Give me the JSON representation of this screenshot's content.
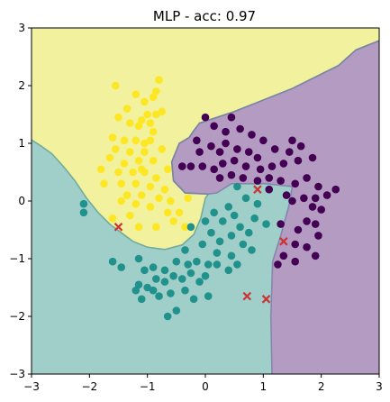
{
  "chart_data": {
    "type": "scatter",
    "title": "MLP - acc: 0.97",
    "xlabel": "",
    "ylabel": "",
    "xlim": [
      -3,
      3
    ],
    "ylim": [
      -3,
      3
    ],
    "xticks": [
      "−3",
      "−2",
      "−1",
      "0",
      "1",
      "2",
      "3"
    ],
    "yticks": [
      "−3",
      "−2",
      "−1",
      "0",
      "1",
      "2",
      "3"
    ],
    "grid": false,
    "legend": "none",
    "colors": {
      "class_0": "#440154",
      "class_1": "#21918c",
      "class_2": "#fde725",
      "region_0": "#b39bc2",
      "region_1": "#a0cfca",
      "region_2": "#f2f19d",
      "boundary": "#5f9f95",
      "misclassified": "#cc3333"
    },
    "decision_regions": {
      "class_2_boundary": [
        [
          -3.0,
          1.06
        ],
        [
          -2.83,
          0.95
        ],
        [
          -2.65,
          0.82
        ],
        [
          -2.45,
          0.6
        ],
        [
          -2.25,
          0.35
        ],
        [
          -2.05,
          0.05
        ],
        [
          -1.85,
          -0.2
        ],
        [
          -1.65,
          -0.4
        ],
        [
          -1.45,
          -0.55
        ],
        [
          -1.25,
          -0.7
        ],
        [
          -1.0,
          -0.8
        ],
        [
          -0.7,
          -0.84
        ],
        [
          -0.4,
          -0.76
        ],
        [
          -0.2,
          -0.58
        ],
        [
          -0.08,
          -0.3
        ],
        [
          0.0,
          0.05
        ],
        [
          0.05,
          0.12
        ],
        [
          -0.35,
          0.14
        ],
        [
          -0.55,
          0.35
        ],
        [
          -0.58,
          0.68
        ],
        [
          -0.45,
          1.0
        ],
        [
          -0.28,
          1.1
        ],
        [
          -0.2,
          1.22
        ],
        [
          -0.1,
          1.35
        ],
        [
          0.5,
          1.55
        ],
        [
          1.5,
          1.95
        ],
        [
          2.3,
          2.35
        ],
        [
          2.6,
          2.62
        ],
        [
          3.0,
          2.78
        ]
      ],
      "class_0_boundary": [
        [
          1.15,
          -3.0
        ],
        [
          1.13,
          -2.0
        ],
        [
          1.16,
          -1.05
        ],
        [
          1.3,
          -0.6
        ],
        [
          1.45,
          -0.05
        ],
        [
          1.5,
          0.25
        ],
        [
          1.05,
          0.3
        ],
        [
          0.45,
          0.3
        ],
        [
          0.2,
          0.14
        ],
        [
          0.05,
          0.12
        ],
        [
          -0.35,
          0.14
        ],
        [
          -0.55,
          0.35
        ],
        [
          -0.58,
          0.68
        ],
        [
          -0.45,
          1.0
        ],
        [
          -0.28,
          1.1
        ],
        [
          -0.2,
          1.22
        ],
        [
          -0.1,
          1.35
        ],
        [
          0.5,
          1.55
        ],
        [
          1.5,
          1.95
        ],
        [
          2.3,
          2.35
        ],
        [
          2.6,
          2.62
        ],
        [
          3.0,
          2.78
        ]
      ]
    },
    "series": [
      {
        "class": 2,
        "points": [
          [
            -1.55,
            2.0
          ],
          [
            -1.2,
            1.85
          ],
          [
            -0.8,
            2.1
          ],
          [
            -0.85,
            1.9
          ],
          [
            -0.9,
            1.8
          ],
          [
            -1.05,
            1.72
          ],
          [
            -0.75,
            1.55
          ],
          [
            -1.0,
            1.5
          ],
          [
            -1.5,
            1.45
          ],
          [
            -1.3,
            1.35
          ],
          [
            -1.1,
            1.4
          ],
          [
            -0.95,
            1.35
          ],
          [
            -0.9,
            1.2
          ],
          [
            -1.15,
            1.3
          ],
          [
            -1.6,
            1.1
          ],
          [
            -1.4,
            1.05
          ],
          [
            -1.2,
            1.05
          ],
          [
            -1.05,
            1.0
          ],
          [
            -0.95,
            1.05
          ],
          [
            -1.55,
            0.9
          ],
          [
            -1.3,
            0.85
          ],
          [
            -1.05,
            0.85
          ],
          [
            -0.75,
            0.9
          ],
          [
            -1.65,
            0.75
          ],
          [
            -1.4,
            0.65
          ],
          [
            -1.15,
            0.7
          ],
          [
            -0.9,
            0.7
          ],
          [
            -0.65,
            0.55
          ],
          [
            -1.8,
            0.55
          ],
          [
            -1.5,
            0.5
          ],
          [
            -1.25,
            0.5
          ],
          [
            -1.05,
            0.5
          ],
          [
            -0.85,
            0.4
          ],
          [
            -1.75,
            0.3
          ],
          [
            -1.45,
            0.3
          ],
          [
            -1.2,
            0.3
          ],
          [
            -0.95,
            0.25
          ],
          [
            -0.7,
            0.2
          ],
          [
            -1.35,
            0.1
          ],
          [
            -1.1,
            0.1
          ],
          [
            -0.8,
            0.05
          ],
          [
            -0.6,
            0.0
          ],
          [
            -1.2,
            -0.05
          ],
          [
            -0.95,
            -0.1
          ],
          [
            -0.65,
            -0.2
          ],
          [
            -1.3,
            -0.25
          ],
          [
            -0.45,
            -0.2
          ],
          [
            -0.55,
            -0.35
          ],
          [
            -0.35,
            -0.45
          ],
          [
            -0.85,
            -0.45
          ],
          [
            -1.15,
            -0.45
          ],
          [
            -0.3,
            0.05
          ],
          [
            -1.6,
            -0.3
          ],
          [
            -1.45,
            0.0
          ],
          [
            -0.85,
            1.5
          ],
          [
            -1.35,
            1.6
          ],
          [
            -1.1,
            0.55
          ]
        ]
      },
      {
        "class": 0,
        "points": [
          [
            0.0,
            1.45
          ],
          [
            0.15,
            1.3
          ],
          [
            0.35,
            1.2
          ],
          [
            0.6,
            1.25
          ],
          [
            0.8,
            1.15
          ],
          [
            1.0,
            1.05
          ],
          [
            1.5,
            1.05
          ],
          [
            -0.15,
            1.05
          ],
          [
            0.1,
            0.95
          ],
          [
            0.35,
            1.0
          ],
          [
            0.55,
            0.9
          ],
          [
            0.75,
            0.85
          ],
          [
            1.2,
            0.9
          ],
          [
            1.45,
            0.85
          ],
          [
            1.65,
            0.95
          ],
          [
            1.85,
            0.75
          ],
          [
            1.6,
            0.7
          ],
          [
            1.35,
            0.65
          ],
          [
            1.15,
            0.6
          ],
          [
            0.95,
            0.55
          ],
          [
            0.7,
            0.6
          ],
          [
            0.5,
            0.7
          ],
          [
            0.3,
            0.65
          ],
          [
            0.15,
            0.55
          ],
          [
            -0.05,
            0.6
          ],
          [
            -0.25,
            0.6
          ],
          [
            -0.4,
            0.6
          ],
          [
            0.25,
            0.4
          ],
          [
            0.45,
            0.45
          ],
          [
            0.65,
            0.4
          ],
          [
            0.9,
            0.35
          ],
          [
            1.1,
            0.4
          ],
          [
            1.3,
            0.35
          ],
          [
            1.55,
            0.3
          ],
          [
            1.75,
            0.4
          ],
          [
            1.95,
            0.25
          ],
          [
            2.1,
            0.1
          ],
          [
            2.25,
            0.2
          ],
          [
            1.9,
            0.05
          ],
          [
            1.7,
            0.05
          ],
          [
            1.5,
            0.0
          ],
          [
            1.4,
            0.1
          ],
          [
            1.85,
            -0.1
          ],
          [
            2.0,
            -0.15
          ],
          [
            1.75,
            -0.35
          ],
          [
            1.6,
            -0.5
          ],
          [
            1.9,
            -0.4
          ],
          [
            1.55,
            -0.75
          ],
          [
            1.75,
            -0.8
          ],
          [
            1.95,
            -0.6
          ],
          [
            1.55,
            -1.05
          ],
          [
            1.9,
            -0.95
          ],
          [
            1.35,
            -0.95
          ],
          [
            1.25,
            -1.1
          ],
          [
            1.3,
            -0.4
          ],
          [
            1.1,
            0.2
          ],
          [
            0.9,
            0.75
          ],
          [
            0.45,
            1.45
          ],
          [
            0.25,
            0.85
          ],
          [
            -0.1,
            0.85
          ]
        ]
      },
      {
        "class": 1,
        "points": [
          [
            -2.1,
            -0.05
          ],
          [
            -2.1,
            -0.2
          ],
          [
            -1.6,
            -1.05
          ],
          [
            -1.45,
            -1.15
          ],
          [
            -1.15,
            -1.0
          ],
          [
            -1.05,
            -1.2
          ],
          [
            -0.9,
            -1.15
          ],
          [
            -0.7,
            -1.2
          ],
          [
            -0.5,
            -1.05
          ],
          [
            -0.3,
            -1.1
          ],
          [
            -0.15,
            -1.05
          ],
          [
            -1.2,
            -1.55
          ],
          [
            -1.0,
            -1.5
          ],
          [
            -0.85,
            -1.35
          ],
          [
            -0.7,
            -1.4
          ],
          [
            -0.55,
            -1.3
          ],
          [
            -0.4,
            -1.35
          ],
          [
            -0.25,
            -1.25
          ],
          [
            -0.1,
            -1.4
          ],
          [
            0.0,
            -1.3
          ],
          [
            -0.6,
            -1.6
          ],
          [
            -0.35,
            -1.55
          ],
          [
            -0.2,
            -1.7
          ],
          [
            0.05,
            -1.65
          ],
          [
            -0.5,
            -1.9
          ],
          [
            -0.65,
            -2.0
          ],
          [
            -1.15,
            -1.45
          ],
          [
            -0.9,
            -1.55
          ],
          [
            -1.1,
            -1.7
          ],
          [
            0.1,
            -0.55
          ],
          [
            0.3,
            -0.35
          ],
          [
            0.5,
            -0.25
          ],
          [
            0.6,
            -0.45
          ],
          [
            0.45,
            -0.6
          ],
          [
            0.25,
            -0.7
          ],
          [
            0.2,
            -0.9
          ],
          [
            0.45,
            -0.95
          ],
          [
            0.65,
            -0.75
          ],
          [
            0.75,
            -0.55
          ],
          [
            0.85,
            -0.3
          ],
          [
            0.9,
            -0.05
          ],
          [
            0.7,
            0.05
          ],
          [
            0.55,
            0.25
          ],
          [
            0.4,
            -0.1
          ],
          [
            0.15,
            -0.2
          ],
          [
            0.0,
            -0.35
          ],
          [
            -0.05,
            -0.75
          ],
          [
            0.2,
            -1.1
          ],
          [
            0.4,
            -1.2
          ],
          [
            0.55,
            -1.1
          ],
          [
            0.05,
            -1.1
          ],
          [
            -0.35,
            -0.85
          ],
          [
            -0.25,
            -0.45
          ],
          [
            0.8,
            -0.85
          ],
          [
            1.05,
            -0.4
          ],
          [
            -0.8,
            -1.65
          ]
        ]
      }
    ],
    "misclassified_points": [
      [
        -1.5,
        -0.45
      ],
      [
        0.9,
        0.2
      ],
      [
        1.35,
        -0.7
      ],
      [
        0.72,
        -1.65
      ],
      [
        1.05,
        -1.7
      ]
    ]
  }
}
